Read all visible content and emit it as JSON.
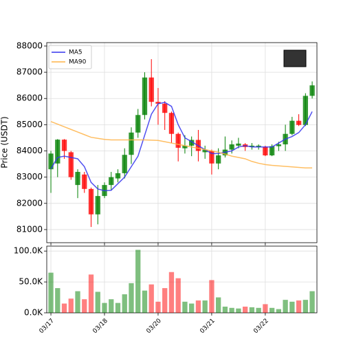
{
  "chart_data": {
    "type": "candlestick",
    "ylabel": "Price (USDT)",
    "x": [
      0,
      1,
      2,
      3,
      4,
      5,
      6,
      7,
      8,
      9,
      10,
      11,
      12,
      13,
      14,
      15,
      16,
      17,
      18,
      19,
      20,
      21,
      22,
      23,
      24,
      25,
      26,
      27,
      28,
      29,
      30,
      31,
      32,
      33,
      34,
      35,
      36,
      37,
      38,
      39
    ],
    "xlim": [
      -0.62,
      39.71
    ],
    "xticks": [
      {
        "value": 0,
        "label": "03/17"
      },
      {
        "value": 8,
        "label": "03/18"
      },
      {
        "value": 16,
        "label": "03/20"
      },
      {
        "value": 24,
        "label": "03/21"
      },
      {
        "value": 32,
        "label": "03/22"
      }
    ],
    "open": [
      83300,
      83520,
      84430,
      83950,
      82700,
      83100,
      82550,
      81580,
      82280,
      82700,
      82950,
      83150,
      83850,
      84700,
      85370,
      86800,
      85870,
      85800,
      85450,
      84650,
      84100,
      84200,
      84420,
      83950,
      84000,
      83520,
      83830,
      84050,
      84200,
      84250,
      84150,
      84150,
      84150,
      83830,
      84180,
      84250,
      84650,
      85150,
      84990,
      86100
    ],
    "high": [
      84000,
      84450,
      84450,
      84000,
      83300,
      83200,
      82600,
      82700,
      82800,
      83200,
      83300,
      84100,
      84900,
      85600,
      87000,
      87500,
      86400,
      85900,
      85500,
      84700,
      84600,
      84550,
      84800,
      84200,
      84050,
      84100,
      84550,
      84400,
      84500,
      84300,
      84300,
      84250,
      84200,
      84250,
      84350,
      85000,
      85300,
      85400,
      86200,
      86650
    ],
    "low": [
      82400,
      83000,
      83700,
      82900,
      82200,
      82400,
      81100,
      81200,
      82200,
      82500,
      82800,
      82950,
      83500,
      84500,
      85200,
      85700,
      85000,
      84800,
      84300,
      83600,
      83900,
      83800,
      83600,
      83700,
      83100,
      83300,
      83750,
      83900,
      84100,
      84000,
      84050,
      84050,
      83800,
      83800,
      84000,
      84000,
      84600,
      84950,
      84950,
      86000
    ],
    "close": [
      83900,
      84430,
      84000,
      83000,
      83200,
      82550,
      81580,
      82280,
      82700,
      83000,
      83150,
      83850,
      84700,
      85370,
      86800,
      85870,
      85800,
      85450,
      84650,
      84120,
      84200,
      84420,
      84000,
      84050,
      83520,
      83830,
      84050,
      84250,
      84280,
      84150,
      84200,
      84200,
      83830,
      84180,
      84250,
      84650,
      85150,
      84990,
      86100,
      86500
    ],
    "up_color": "green",
    "down_color": "red",
    "series": [
      {
        "name": "MA5",
        "color": "#3333ee",
        "values": [
          83320,
          83750,
          83800,
          83750,
          83700,
          83400,
          82800,
          82550,
          82480,
          82500,
          82750,
          83000,
          83400,
          83800,
          84600,
          85400,
          85800,
          85850,
          85700,
          85000,
          84500,
          84350,
          84200,
          84050,
          83900,
          83900,
          83950,
          84000,
          84150,
          84200,
          84150,
          84150,
          84150,
          84150,
          84300,
          84450,
          84550,
          84700,
          85000,
          85500
        ]
      },
      {
        "name": "MA90",
        "color": "#ffb347",
        "values": [
          85120,
          85020,
          84920,
          84820,
          84720,
          84620,
          84520,
          84480,
          84440,
          84420,
          84420,
          84420,
          84420,
          84420,
          84420,
          84410,
          84400,
          84350,
          84300,
          84250,
          84200,
          84150,
          84100,
          84050,
          84000,
          83950,
          83880,
          83800,
          83750,
          83700,
          83600,
          83530,
          83480,
          83450,
          83430,
          83410,
          83390,
          83370,
          83350,
          83350
        ]
      }
    ],
    "ylim": [
      80500,
      88130
    ],
    "yticks": [
      81000,
      82000,
      83000,
      84000,
      85000,
      86000,
      87000,
      88000
    ],
    "grid": true,
    "legend": "upper left",
    "volume": [
      65000,
      40000,
      15000,
      23000,
      35000,
      22000,
      62000,
      34000,
      16000,
      22000,
      16000,
      30000,
      48000,
      102000,
      36000,
      46000,
      18000,
      40000,
      66000,
      56000,
      18000,
      15000,
      20000,
      20000,
      53000,
      25000,
      10000,
      8000,
      7000,
      10000,
      9000,
      8000,
      14000,
      8000,
      6000,
      21000,
      18000,
      20000,
      21000,
      35000
    ],
    "volume_ylim": [
      0,
      108000
    ],
    "volume_yticks": [
      {
        "value": 0,
        "label": "0.0K"
      },
      {
        "value": 50000,
        "label": "50.0K"
      },
      {
        "value": 100000,
        "label": "100.0K"
      }
    ]
  }
}
